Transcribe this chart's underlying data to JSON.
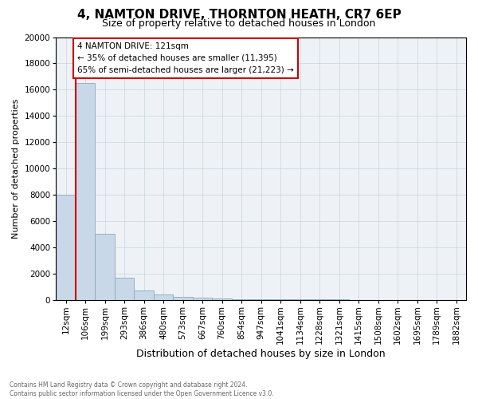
{
  "title": "4, NAMTON DRIVE, THORNTON HEATH, CR7 6EP",
  "subtitle": "Size of property relative to detached houses in London",
  "xlabel": "Distribution of detached houses by size in London",
  "ylabel": "Number of detached properties",
  "annotation_line1": "4 NAMTON DRIVE: 121sqm",
  "annotation_line2": "← 35% of detached houses are smaller (11,395)",
  "annotation_line3": "65% of semi-detached houses are larger (21,223) →",
  "footer_line1": "Contains HM Land Registry data © Crown copyright and database right 2024.",
  "footer_line2": "Contains public sector information licensed under the Open Government Licence v3.0.",
  "categories": [
    "12sqm",
    "106sqm",
    "199sqm",
    "293sqm",
    "386sqm",
    "480sqm",
    "573sqm",
    "667sqm",
    "760sqm",
    "854sqm",
    "947sqm",
    "1041sqm",
    "1134sqm",
    "1228sqm",
    "1321sqm",
    "1415sqm",
    "1508sqm",
    "1602sqm",
    "1695sqm",
    "1789sqm",
    "1882sqm"
  ],
  "values": [
    8000,
    16500,
    5000,
    1700,
    700,
    400,
    200,
    150,
    100,
    75,
    50,
    40,
    30,
    22,
    17,
    13,
    10,
    8,
    6,
    5,
    4
  ],
  "bar_color": "#c8d8e8",
  "bar_edge_color": "#8aaabb",
  "vline_color": "#cc0000",
  "annotation_box_color": "#cc0000",
  "ylim": [
    0,
    20000
  ],
  "yticks": [
    0,
    2000,
    4000,
    6000,
    8000,
    10000,
    12000,
    14000,
    16000,
    18000,
    20000
  ],
  "grid_color": "#c8d4dc",
  "background_color": "#eef2f6",
  "title_fontsize": 11,
  "subtitle_fontsize": 9,
  "xlabel_fontsize": 9,
  "ylabel_fontsize": 8,
  "tick_fontsize": 7.5,
  "annotation_fontsize": 7.5
}
